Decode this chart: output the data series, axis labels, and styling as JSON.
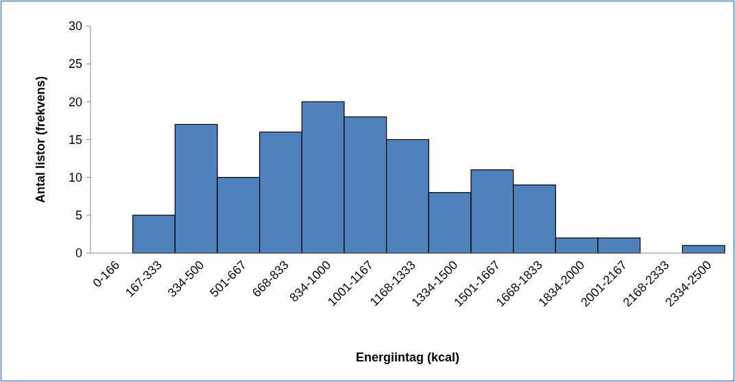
{
  "chart_data": {
    "type": "bar",
    "xlabel": "Energiintag (kcal)",
    "ylabel": "Antal listor (frekvens)",
    "categories": [
      "0-166",
      "167-333",
      "334-500",
      "501-667",
      "668-833",
      "834-1000",
      "1001-1167",
      "1168-1333",
      "1334-1500",
      "1501-1667",
      "1668-1833",
      "1834-2000",
      "2001-2167",
      "2168-2333",
      "2334-2500"
    ],
    "values": [
      0,
      5,
      17,
      10,
      16,
      20,
      18,
      15,
      8,
      11,
      9,
      2,
      2,
      0,
      1
    ],
    "color": "#4f81bd",
    "ylim": [
      0,
      30
    ],
    "yticks": [
      0,
      5,
      10,
      15,
      20,
      25,
      30
    ],
    "grid": false
  }
}
